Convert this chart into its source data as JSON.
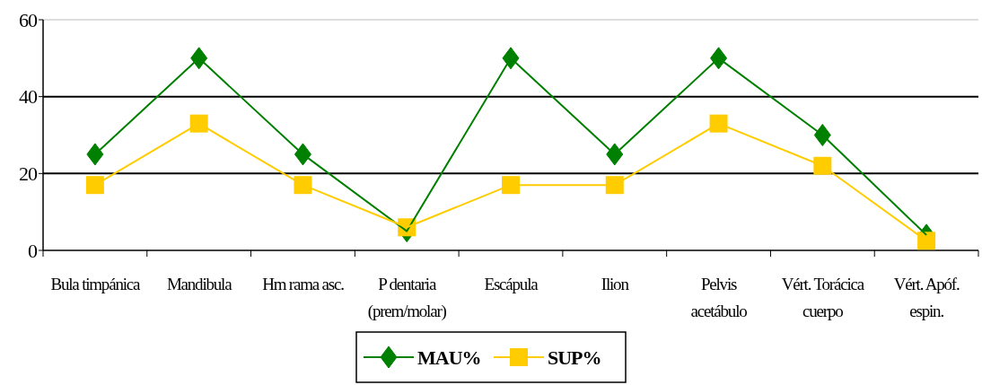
{
  "chart_data": {
    "type": "line",
    "categories": [
      "Bula timpánica",
      "Mandibula",
      "Hm rama asc.",
      "P dentaria\n(prem/molar)",
      "Escápula",
      "Ilion",
      "Pelvis\nacetábulo",
      "Vért. Torácica\ncuerpo",
      "Vért. Apóf.\nespin."
    ],
    "series": [
      {
        "name": "MAU%",
        "color": "#008000",
        "marker": "diamond",
        "values": [
          25,
          50,
          25,
          5,
          50,
          25,
          50,
          30,
          4
        ]
      },
      {
        "name": "SUP%",
        "color": "#ffcc00",
        "marker": "square",
        "values": [
          17,
          33,
          17,
          6,
          17,
          17,
          33,
          22,
          2.5
        ]
      }
    ],
    "ylim": [
      0,
      60
    ],
    "yticks": [
      0,
      20,
      40,
      60
    ],
    "grid": "y",
    "legend": "bottom"
  }
}
